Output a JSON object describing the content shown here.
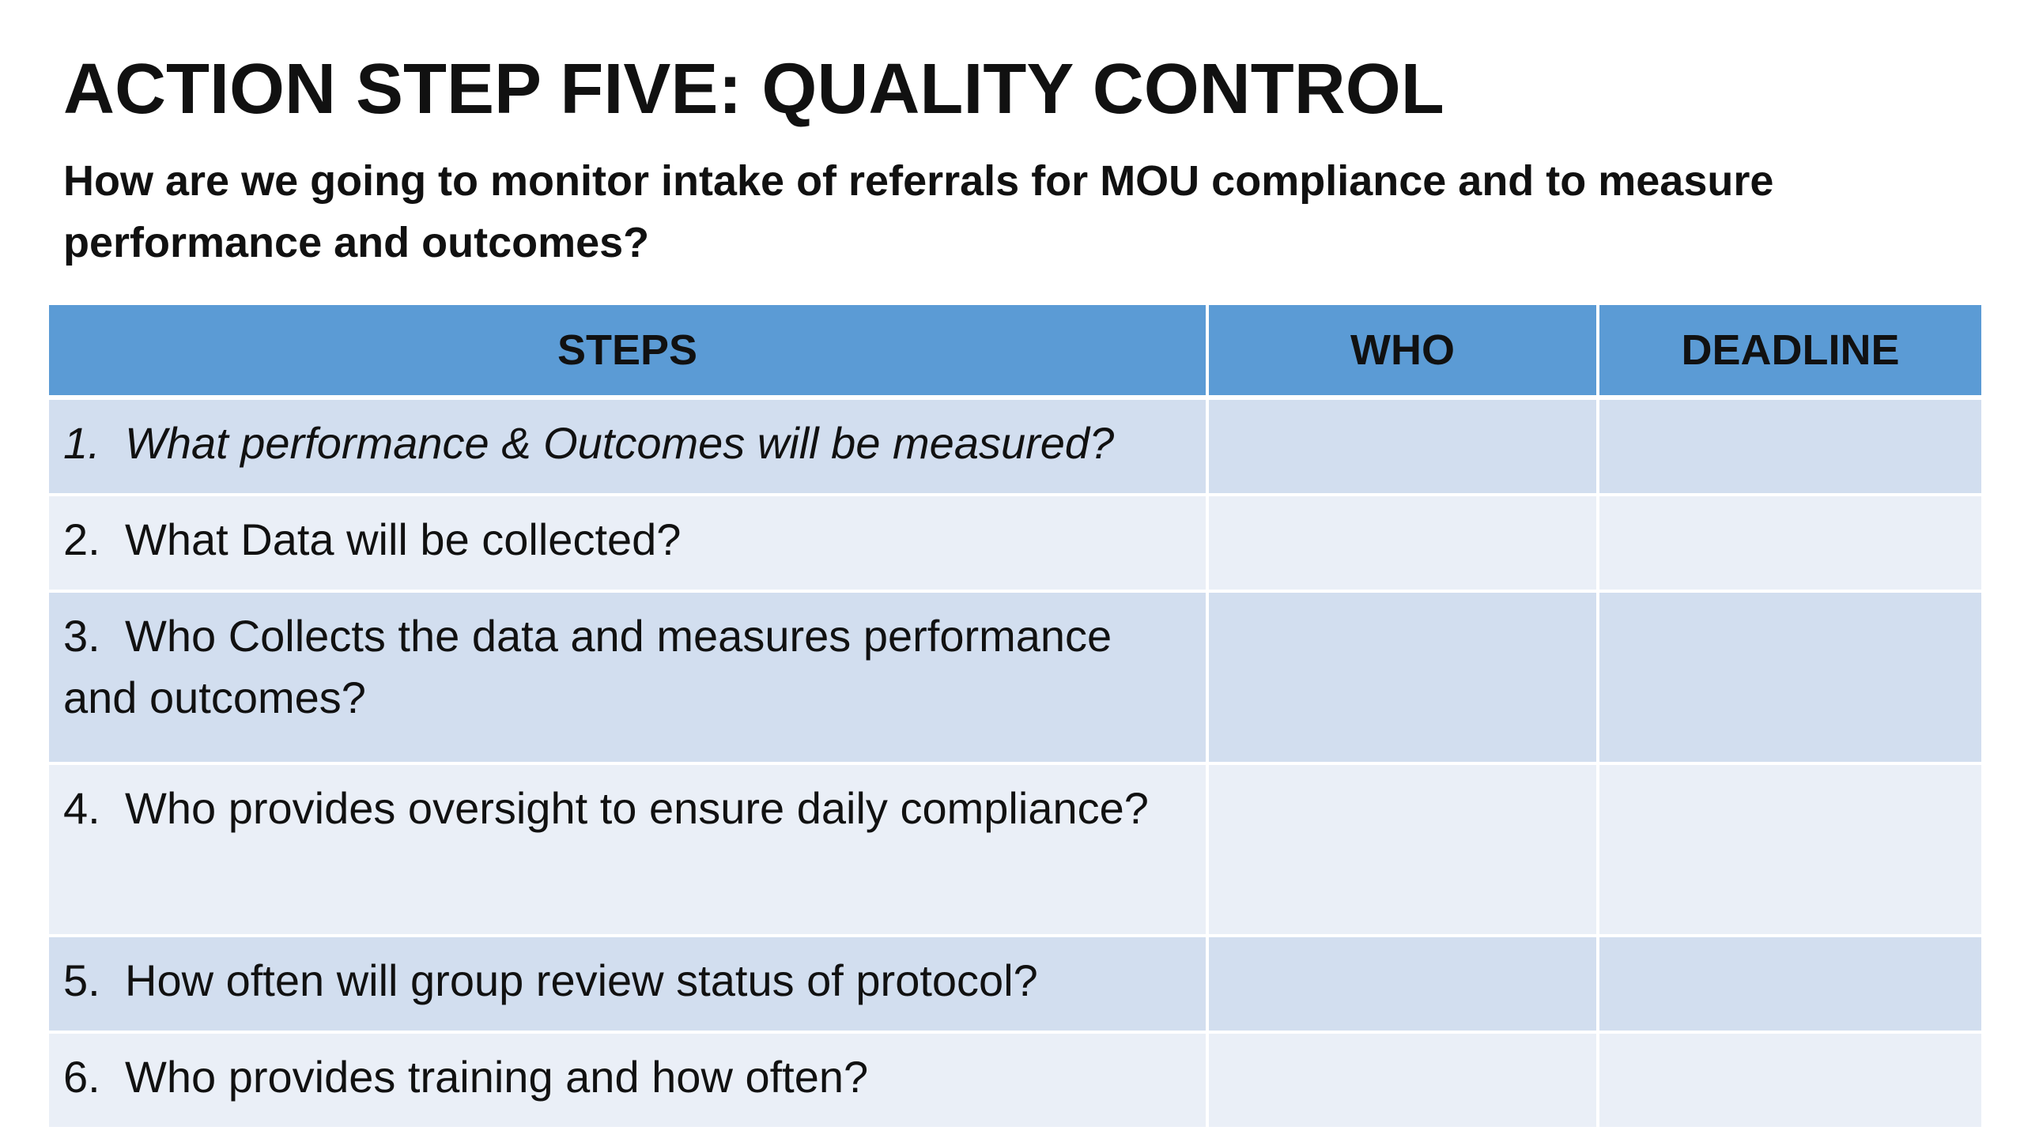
{
  "slide": {
    "title": "ACTION STEP FIVE: QUALITY CONTROL",
    "subtitle": "How are we going to monitor intake of referrals for MOU compliance and to measure performance and outcomes?"
  },
  "table": {
    "headers": {
      "steps": "STEPS",
      "who": "WHO",
      "deadline": "DEADLINE"
    },
    "header_color": "#5b9bd5",
    "row_colors": [
      "#d2deef",
      "#eaeff7"
    ],
    "rows": [
      {
        "num": "1.",
        "text": "What performance & Outcomes will be measured?",
        "who": "",
        "deadline": ""
      },
      {
        "num": "2.",
        "text": "What Data will be collected?",
        "who": "",
        "deadline": ""
      },
      {
        "num": "3.",
        "text": "Who Collects the data and measures performance and outcomes?",
        "who": "",
        "deadline": ""
      },
      {
        "num": "4.",
        "text": "Who provides oversight to ensure daily compliance?",
        "who": "",
        "deadline": ""
      },
      {
        "num": "5.",
        "text": "How often will group review status of protocol?",
        "who": "",
        "deadline": ""
      },
      {
        "num": "6.",
        "text": "Who provides training and how often?",
        "who": "",
        "deadline": ""
      }
    ]
  }
}
